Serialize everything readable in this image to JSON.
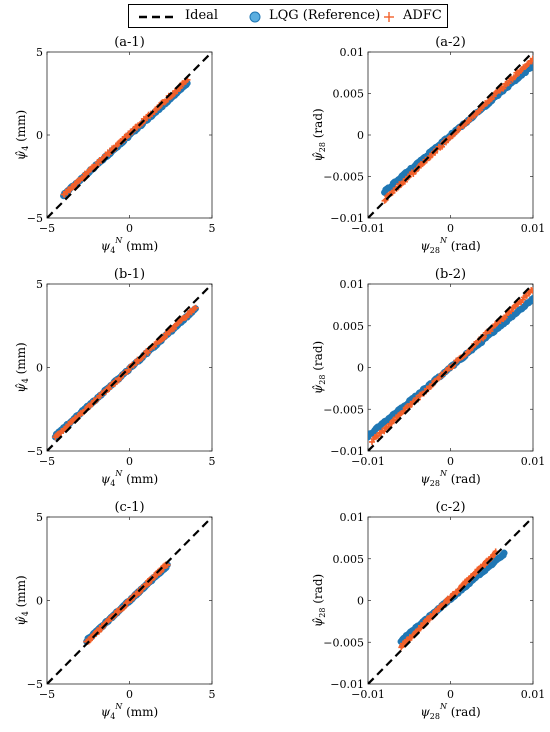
{
  "legend": {
    "ideal": "Ideal",
    "lqg": "LQG (Reference)",
    "adfc": "ADFC",
    "lqg_color": "#1f77b4",
    "lqg_fill": "#5aaee0",
    "adfc_color": "#f2602a",
    "ideal_color": "#000000",
    "placement": "top-center"
  },
  "chart_data": [
    {
      "type": "scatter",
      "title": "(a-1)",
      "xlabel": "ψ4N (mm)",
      "ylabel": "ψ̂4 (mm)",
      "xlim": [
        -5,
        5
      ],
      "ylim": [
        -5,
        5
      ],
      "xticks": [
        "-5",
        "0",
        "5"
      ],
      "yticks": [
        "-5",
        "0",
        "5"
      ],
      "series": [
        {
          "name": "Ideal",
          "x": [
            -5,
            5
          ],
          "y": [
            -5,
            5
          ]
        },
        {
          "name": "LQG (Reference)",
          "x": [
            -4.0,
            3.5
          ],
          "y": [
            -3.6,
            3.1
          ]
        },
        {
          "name": "ADFC",
          "x": [
            -4.0,
            3.5
          ],
          "y": [
            -3.6,
            3.3
          ]
        }
      ]
    },
    {
      "type": "scatter",
      "title": "(a-2)",
      "xlabel": "ψ28N (rad)",
      "ylabel": "ψ̂28 (rad)",
      "xlim": [
        -0.01,
        0.01
      ],
      "ylim": [
        -0.01,
        0.01
      ],
      "xticks": [
        "-0.01",
        "0",
        "0.01"
      ],
      "yticks": [
        "-0.01",
        "-0.005",
        "0",
        "0.005",
        "0.01"
      ],
      "series": [
        {
          "name": "Ideal",
          "x": [
            -0.01,
            0.01
          ],
          "y": [
            -0.01,
            0.01
          ]
        },
        {
          "name": "LQG (Reference)",
          "x": [
            -0.008,
            0.01
          ],
          "y": [
            -0.0068,
            0.0084
          ]
        },
        {
          "name": "ADFC",
          "x": [
            -0.008,
            0.01
          ],
          "y": [
            -0.0078,
            0.0092
          ]
        }
      ]
    },
    {
      "type": "scatter",
      "title": "(b-1)",
      "xlabel": "ψ4N (mm)",
      "ylabel": "ψ̂4 (mm)",
      "xlim": [
        -5,
        5
      ],
      "ylim": [
        -5,
        5
      ],
      "xticks": [
        "-5",
        "0",
        "5"
      ],
      "yticks": [
        "-5",
        "0",
        "5"
      ],
      "series": [
        {
          "name": "Ideal",
          "x": [
            -5,
            5
          ],
          "y": [
            -5,
            5
          ]
        },
        {
          "name": "LQG (Reference)",
          "x": [
            -4.5,
            4.0
          ],
          "y": [
            -4.1,
            3.5
          ]
        },
        {
          "name": "ADFC",
          "x": [
            -4.5,
            4.0
          ],
          "y": [
            -4.2,
            3.6
          ]
        }
      ]
    },
    {
      "type": "scatter",
      "title": "(b-2)",
      "xlabel": "ψ28N (rad)",
      "ylabel": "ψ̂28 (rad)",
      "xlim": [
        -0.01,
        0.01
      ],
      "ylim": [
        -0.01,
        0.01
      ],
      "xticks": [
        "-0.01",
        "0",
        "0.01"
      ],
      "yticks": [
        "-0.01",
        "-0.005",
        "0",
        "0.005",
        "0.01"
      ],
      "series": [
        {
          "name": "Ideal",
          "x": [
            -0.01,
            0.01
          ],
          "y": [
            -0.01,
            0.01
          ]
        },
        {
          "name": "LQG (Reference)",
          "x": [
            -0.01,
            0.01
          ],
          "y": [
            -0.0082,
            0.0082
          ]
        },
        {
          "name": "ADFC",
          "x": [
            -0.0095,
            0.01
          ],
          "y": [
            -0.0088,
            0.0093
          ]
        }
      ]
    },
    {
      "type": "scatter",
      "title": "(c-1)",
      "xlabel": "ψ4N (mm)",
      "ylabel": "ψ̂4 (mm)",
      "xlim": [
        -5,
        5
      ],
      "ylim": [
        -5,
        5
      ],
      "xticks": [
        "-5",
        "0",
        "5"
      ],
      "yticks": [
        "-5",
        "0",
        "5"
      ],
      "series": [
        {
          "name": "Ideal",
          "x": [
            -5,
            5
          ],
          "y": [
            -5,
            5
          ]
        },
        {
          "name": "LQG (Reference)",
          "x": [
            -2.6,
            2.3
          ],
          "y": [
            -2.4,
            2.1
          ]
        },
        {
          "name": "ADFC",
          "x": [
            -2.6,
            2.3
          ],
          "y": [
            -2.5,
            2.2
          ]
        }
      ]
    },
    {
      "type": "scatter",
      "title": "(c-2)",
      "xlabel": "ψ28N (rad)",
      "ylabel": "ψ̂28 (rad)",
      "xlim": [
        -0.01,
        0.01
      ],
      "ylim": [
        -0.01,
        0.01
      ],
      "xticks": [
        "-0.01",
        "0",
        "0.01"
      ],
      "yticks": [
        "-0.01",
        "-0.005",
        "0",
        "0.005",
        "0.01"
      ],
      "series": [
        {
          "name": "Ideal",
          "x": [
            -0.01,
            0.01
          ],
          "y": [
            -0.01,
            0.01
          ]
        },
        {
          "name": "LQG (Reference)",
          "x": [
            -0.006,
            0.0065
          ],
          "y": [
            -0.0048,
            0.0056
          ]
        },
        {
          "name": "ADFC",
          "x": [
            -0.006,
            0.0055
          ],
          "y": [
            -0.0055,
            0.0057
          ]
        }
      ]
    }
  ]
}
